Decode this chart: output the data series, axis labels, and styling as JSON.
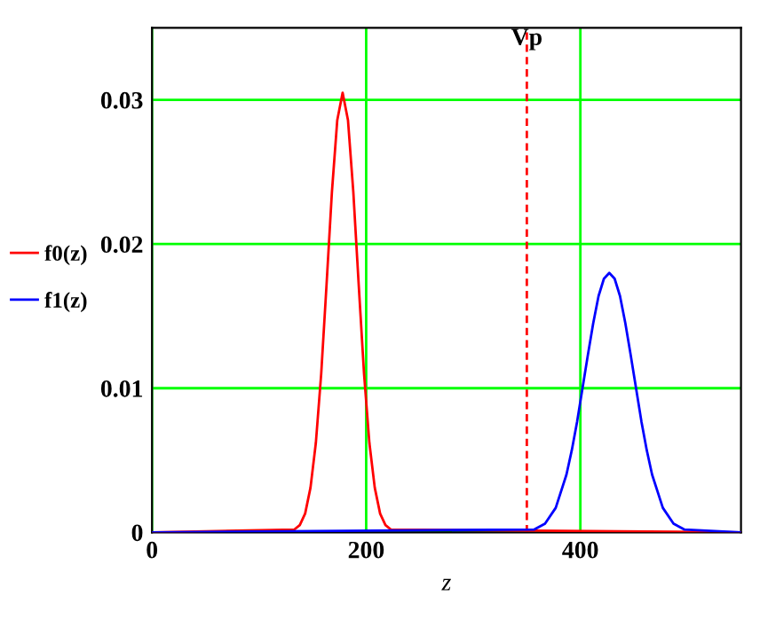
{
  "chart_data": {
    "type": "line",
    "xlabel": "z",
    "xlim": [
      0,
      550
    ],
    "ylim": [
      0,
      0.035
    ],
    "xticks": [
      0,
      200,
      400
    ],
    "yticks": [
      0,
      0.01,
      0.02,
      0.03
    ],
    "grid": true,
    "legend": "left",
    "marker": "none",
    "line_style": "solid",
    "series": [
      {
        "name": "f0(z)",
        "color": "#ff0000",
        "x": [
          0,
          133,
          138,
          143,
          148,
          153,
          158,
          163,
          168,
          173,
          178,
          183,
          188,
          193,
          198,
          203,
          208,
          213,
          218,
          223,
          550
        ],
        "values": [
          0,
          0.0002,
          0.0005,
          0.0013,
          0.0031,
          0.0062,
          0.011,
          0.0172,
          0.0236,
          0.0286,
          0.0305,
          0.0286,
          0.0236,
          0.0172,
          0.011,
          0.0062,
          0.0031,
          0.0013,
          0.0005,
          0.0002,
          0
        ]
      },
      {
        "name": "f1(z)",
        "color": "#0000ff",
        "x": [
          0,
          357,
          367,
          377,
          387,
          392,
          397,
          402,
          407,
          412,
          417,
          422,
          427,
          432,
          437,
          442,
          447,
          452,
          457,
          462,
          467,
          477,
          487,
          497,
          550
        ],
        "values": [
          0,
          0.0002,
          0.0006,
          0.0017,
          0.004,
          0.0057,
          0.0077,
          0.01,
          0.0123,
          0.0145,
          0.0164,
          0.0176,
          0.018,
          0.0176,
          0.0164,
          0.0145,
          0.0123,
          0.01,
          0.0077,
          0.0057,
          0.004,
          0.0017,
          0.0006,
          0.0002,
          0
        ]
      }
    ],
    "ref_lines": [
      {
        "axis": "x",
        "value": 350,
        "label": "Vp",
        "color": "#ff0000",
        "line_style": "dashed"
      }
    ]
  }
}
